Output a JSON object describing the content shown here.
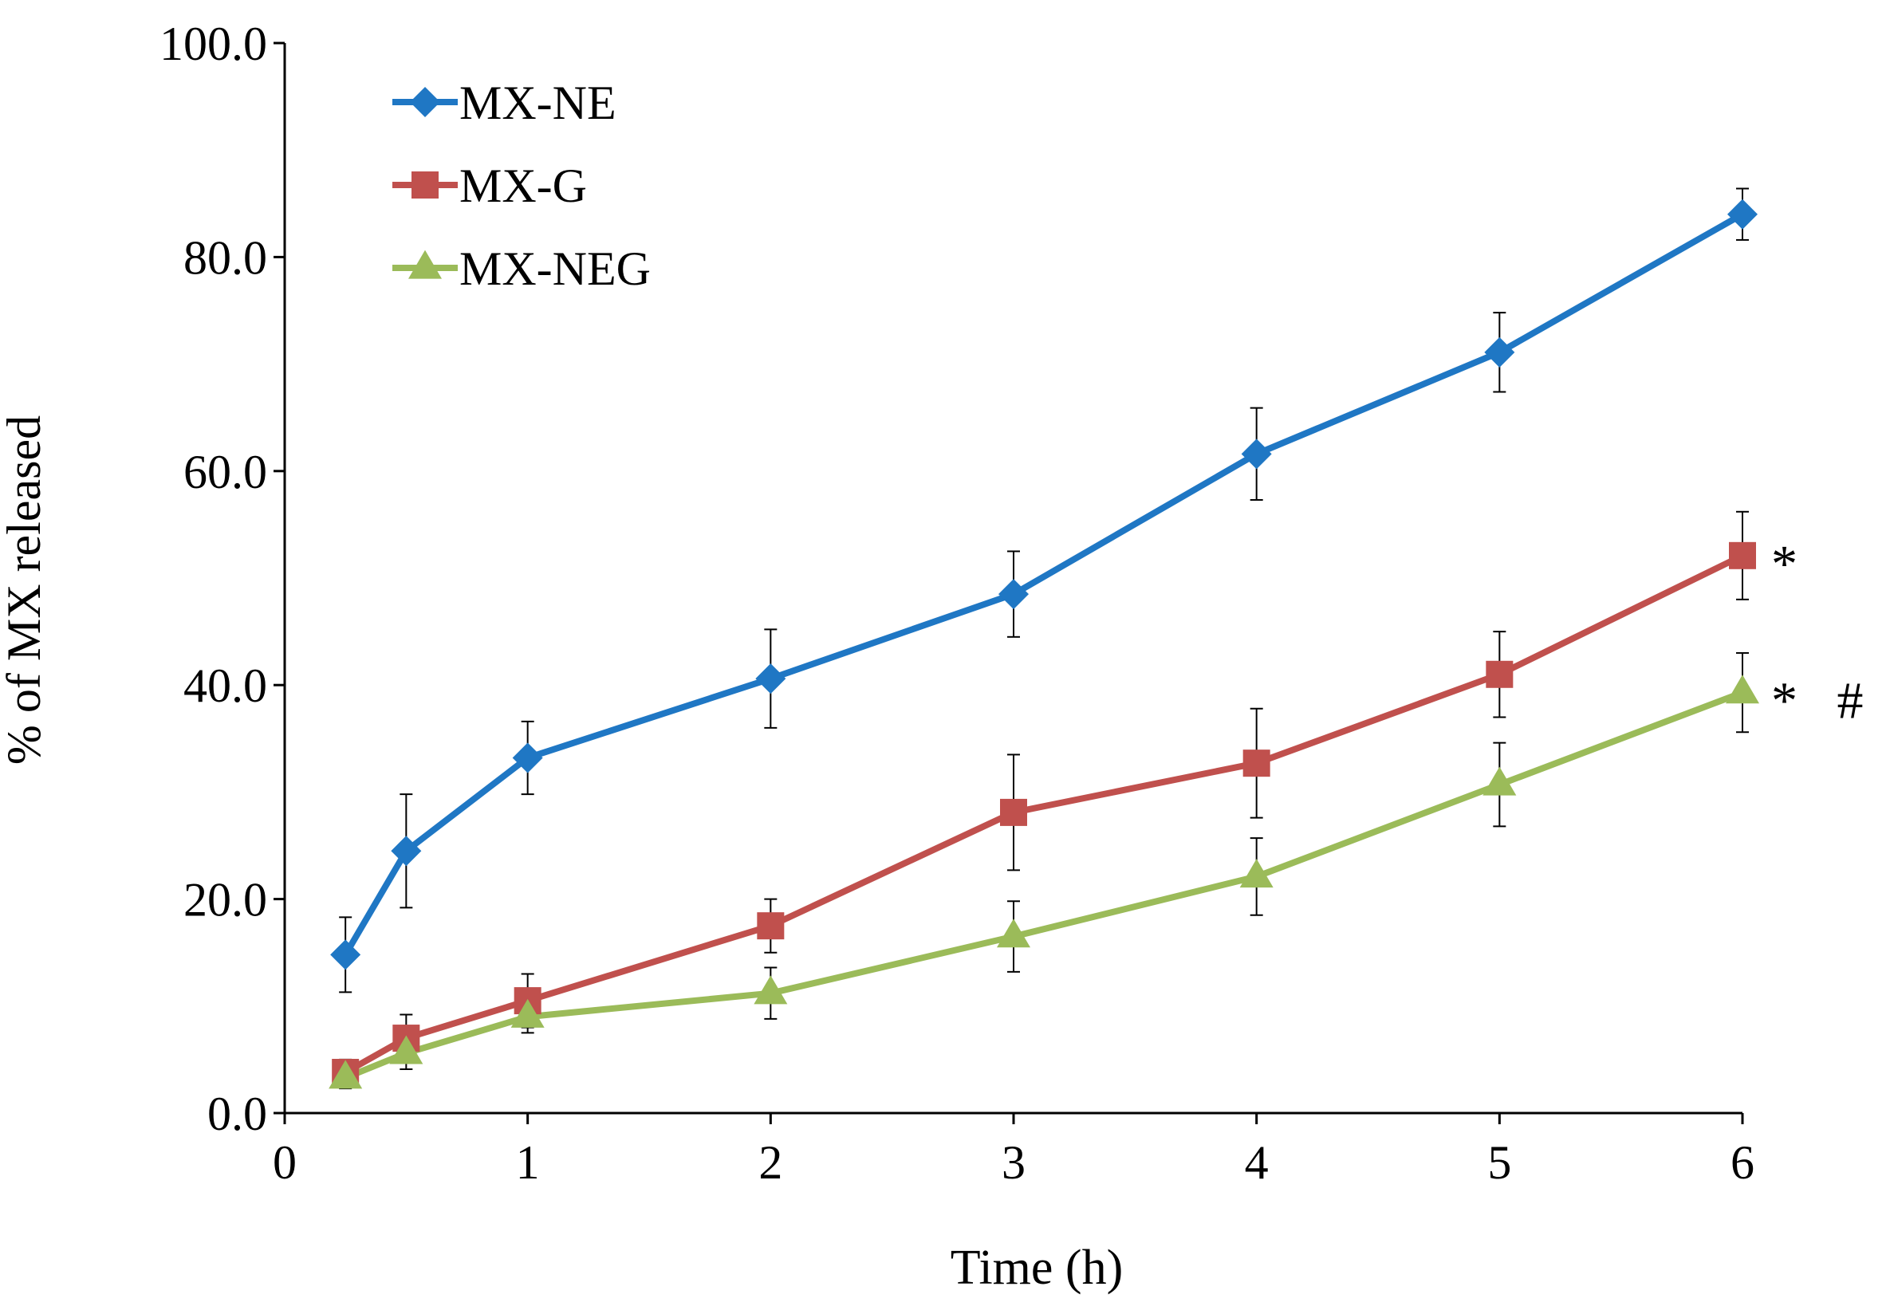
{
  "chart_data": {
    "type": "line",
    "title": "",
    "xlabel": "Time (h)",
    "ylabel": "% of MX released",
    "xlim": [
      0,
      6
    ],
    "ylim": [
      0,
      100
    ],
    "x_ticks": [
      "0",
      "1",
      "2",
      "3",
      "4",
      "5",
      "6"
    ],
    "y_ticks": [
      "0.0",
      "20.0",
      "40.0",
      "60.0",
      "80.0",
      "100.0"
    ],
    "grid": false,
    "legend_position": "top-left",
    "x": [
      0.25,
      0.5,
      1,
      2,
      3,
      4,
      5,
      6
    ],
    "series": [
      {
        "name": "MX-NE",
        "marker": "diamond",
        "color": "#1f77c4",
        "values": [
          14.8,
          24.5,
          33.2,
          40.6,
          48.5,
          61.6,
          71.1,
          84.0
        ],
        "errors": [
          3.5,
          5.3,
          3.4,
          4.6,
          4.0,
          4.3,
          3.7,
          2.4
        ],
        "annotation": ""
      },
      {
        "name": "MX-G",
        "marker": "square",
        "color": "#c0504d",
        "values": [
          3.8,
          7.0,
          10.5,
          17.5,
          28.1,
          32.7,
          41.0,
          52.1
        ],
        "errors": [
          1.2,
          2.2,
          2.5,
          2.5,
          5.4,
          5.1,
          4.0,
          4.1
        ],
        "annotation": "*"
      },
      {
        "name": "MX-NEG",
        "marker": "triangle",
        "color": "#9bbb59",
        "values": [
          3.3,
          5.6,
          9.0,
          11.2,
          16.5,
          22.1,
          30.7,
          39.3
        ],
        "errors": [
          1.0,
          1.5,
          1.5,
          2.4,
          3.3,
          3.6,
          3.9,
          3.7
        ],
        "annotation": "* #"
      }
    ]
  }
}
